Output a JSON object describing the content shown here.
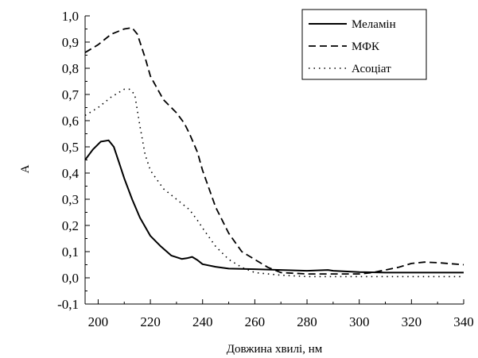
{
  "chart_data": {
    "type": "line",
    "xlabel": "Довжина хвилі, нм",
    "ylabel": "A",
    "xlim": [
      195,
      340
    ],
    "ylim": [
      -0.1,
      1.0
    ],
    "xticks": [
      200,
      220,
      240,
      260,
      280,
      300,
      320,
      340
    ],
    "yticks": [
      -0.1,
      0.0,
      0.1,
      0.2,
      0.3,
      0.4,
      0.5,
      0.6,
      0.7,
      0.8,
      0.9,
      1.0
    ],
    "xtick_labels": [
      "200",
      "220",
      "240",
      "260",
      "280",
      "300",
      "320",
      "340"
    ],
    "ytick_labels": [
      "-0,1",
      "0,0",
      "0,1",
      "0,2",
      "0,3",
      "0,4",
      "0,5",
      "0,6",
      "0,7",
      "0,8",
      "0,9",
      "1,0"
    ],
    "grid": false,
    "legend_position": "top-right",
    "series": [
      {
        "name": "Меламін",
        "style": "solid",
        "x": [
          195,
          198,
          201,
          204,
          206,
          208,
          210,
          213,
          216,
          220,
          224,
          228,
          232,
          234,
          236,
          238,
          240,
          245,
          250,
          260,
          270,
          280,
          288,
          290,
          300,
          310,
          320,
          330,
          340
        ],
        "y": [
          0.45,
          0.49,
          0.52,
          0.525,
          0.5,
          0.44,
          0.38,
          0.3,
          0.23,
          0.16,
          0.12,
          0.085,
          0.072,
          0.075,
          0.08,
          0.068,
          0.052,
          0.042,
          0.035,
          0.033,
          0.03,
          0.027,
          0.03,
          0.027,
          0.022,
          0.02,
          0.02,
          0.02,
          0.02
        ]
      },
      {
        "name": "МФК",
        "style": "dashed",
        "x": [
          195,
          200,
          205,
          210,
          213,
          215,
          218,
          220,
          225,
          230,
          233,
          235,
          238,
          240,
          245,
          250,
          255,
          260,
          265,
          270,
          280,
          290,
          300,
          305,
          310,
          315,
          320,
          325,
          330,
          335,
          340
        ],
        "y": [
          0.86,
          0.89,
          0.93,
          0.95,
          0.955,
          0.93,
          0.84,
          0.77,
          0.68,
          0.63,
          0.59,
          0.55,
          0.48,
          0.41,
          0.27,
          0.17,
          0.1,
          0.07,
          0.04,
          0.02,
          0.015,
          0.015,
          0.015,
          0.02,
          0.03,
          0.04,
          0.055,
          0.06,
          0.058,
          0.054,
          0.05
        ]
      },
      {
        "name": "Асоціат",
        "style": "dotted",
        "x": [
          195,
          200,
          205,
          210,
          212,
          214,
          216,
          218,
          220,
          225,
          230,
          235,
          238,
          240,
          245,
          250,
          255,
          260,
          270,
          280,
          290,
          300,
          310,
          320,
          330,
          340
        ],
        "y": [
          0.62,
          0.65,
          0.69,
          0.72,
          0.72,
          0.7,
          0.58,
          0.47,
          0.41,
          0.34,
          0.3,
          0.26,
          0.22,
          0.19,
          0.12,
          0.07,
          0.04,
          0.02,
          0.01,
          0.005,
          0.005,
          0.005,
          0.005,
          0.005,
          0.005,
          0.005
        ]
      }
    ]
  }
}
